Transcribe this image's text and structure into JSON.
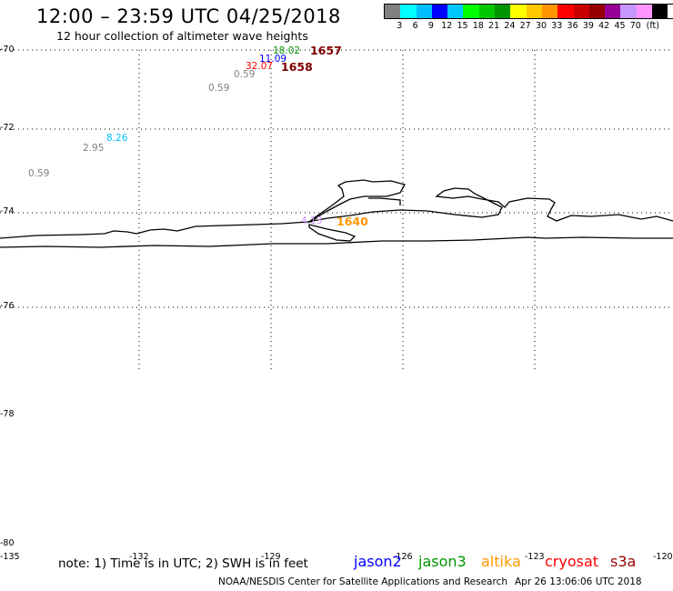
{
  "header": {
    "title": "12:00 – 23:59 UTC 04/25/2018",
    "subtitle": "12 hour collection of altimeter wave heights"
  },
  "scale": {
    "unit": "(ft)",
    "colors": [
      "#808080",
      "#00ffff",
      "#00bfff",
      "#0000ff",
      "#00c8ff",
      "#00ff00",
      "#00c800",
      "#009600",
      "#ffff00",
      "#ffc800",
      "#ff9600",
      "#ff0000",
      "#c80000",
      "#960000",
      "#960096",
      "#c896ff",
      "#ff96ff",
      "#000000"
    ],
    "labels": [
      "3",
      "6",
      "9",
      "12",
      "15",
      "18",
      "21",
      "24",
      "27",
      "30",
      "33",
      "36",
      "39",
      "42",
      "45",
      "70"
    ]
  },
  "map_axes": {
    "lat_labels": [
      "-70",
      "-72",
      "-74",
      "-76",
      "-78",
      "-80"
    ],
    "lon_labels": [
      "-135",
      "-132",
      "-129",
      "-126",
      "-123",
      "-120"
    ]
  },
  "wave_heights": [
    {
      "value": "18.02",
      "color": "#009600"
    },
    {
      "value": "11.09",
      "color": "#0000ff"
    },
    {
      "value": "32.07",
      "color": "#ff0000"
    },
    {
      "value": "0.59",
      "color": "#808080"
    },
    {
      "value": "0.59",
      "color": "#808080"
    },
    {
      "value": "8.26",
      "color": "#00bfff"
    },
    {
      "value": "2.95",
      "color": "#808080"
    },
    {
      "value": "0.59",
      "color": "#808080"
    },
    {
      "value": "4.13",
      "color": "#c896ff"
    }
  ],
  "pass_times": [
    {
      "value": "1657",
      "color": "#800000"
    },
    {
      "value": "1658",
      "color": "#800000"
    },
    {
      "value": "1640",
      "color": "#ff9600"
    }
  ],
  "footer": {
    "note": "note: 1) Time is in UTC; 2) SWH is in feet",
    "legend": [
      {
        "name": "jason2",
        "color": "#0000ff"
      },
      {
        "name": "jason3",
        "color": "#009600"
      },
      {
        "name": "altika",
        "color": "#ff9600"
      },
      {
        "name": "cryosat",
        "color": "#ff0000"
      },
      {
        "name": "s3a",
        "color": "#960000"
      }
    ],
    "credit": "NOAA/NESDIS Center for Satellite Applications and Research",
    "timestamp": "Apr 26 13:06:06 UTC 2018"
  }
}
